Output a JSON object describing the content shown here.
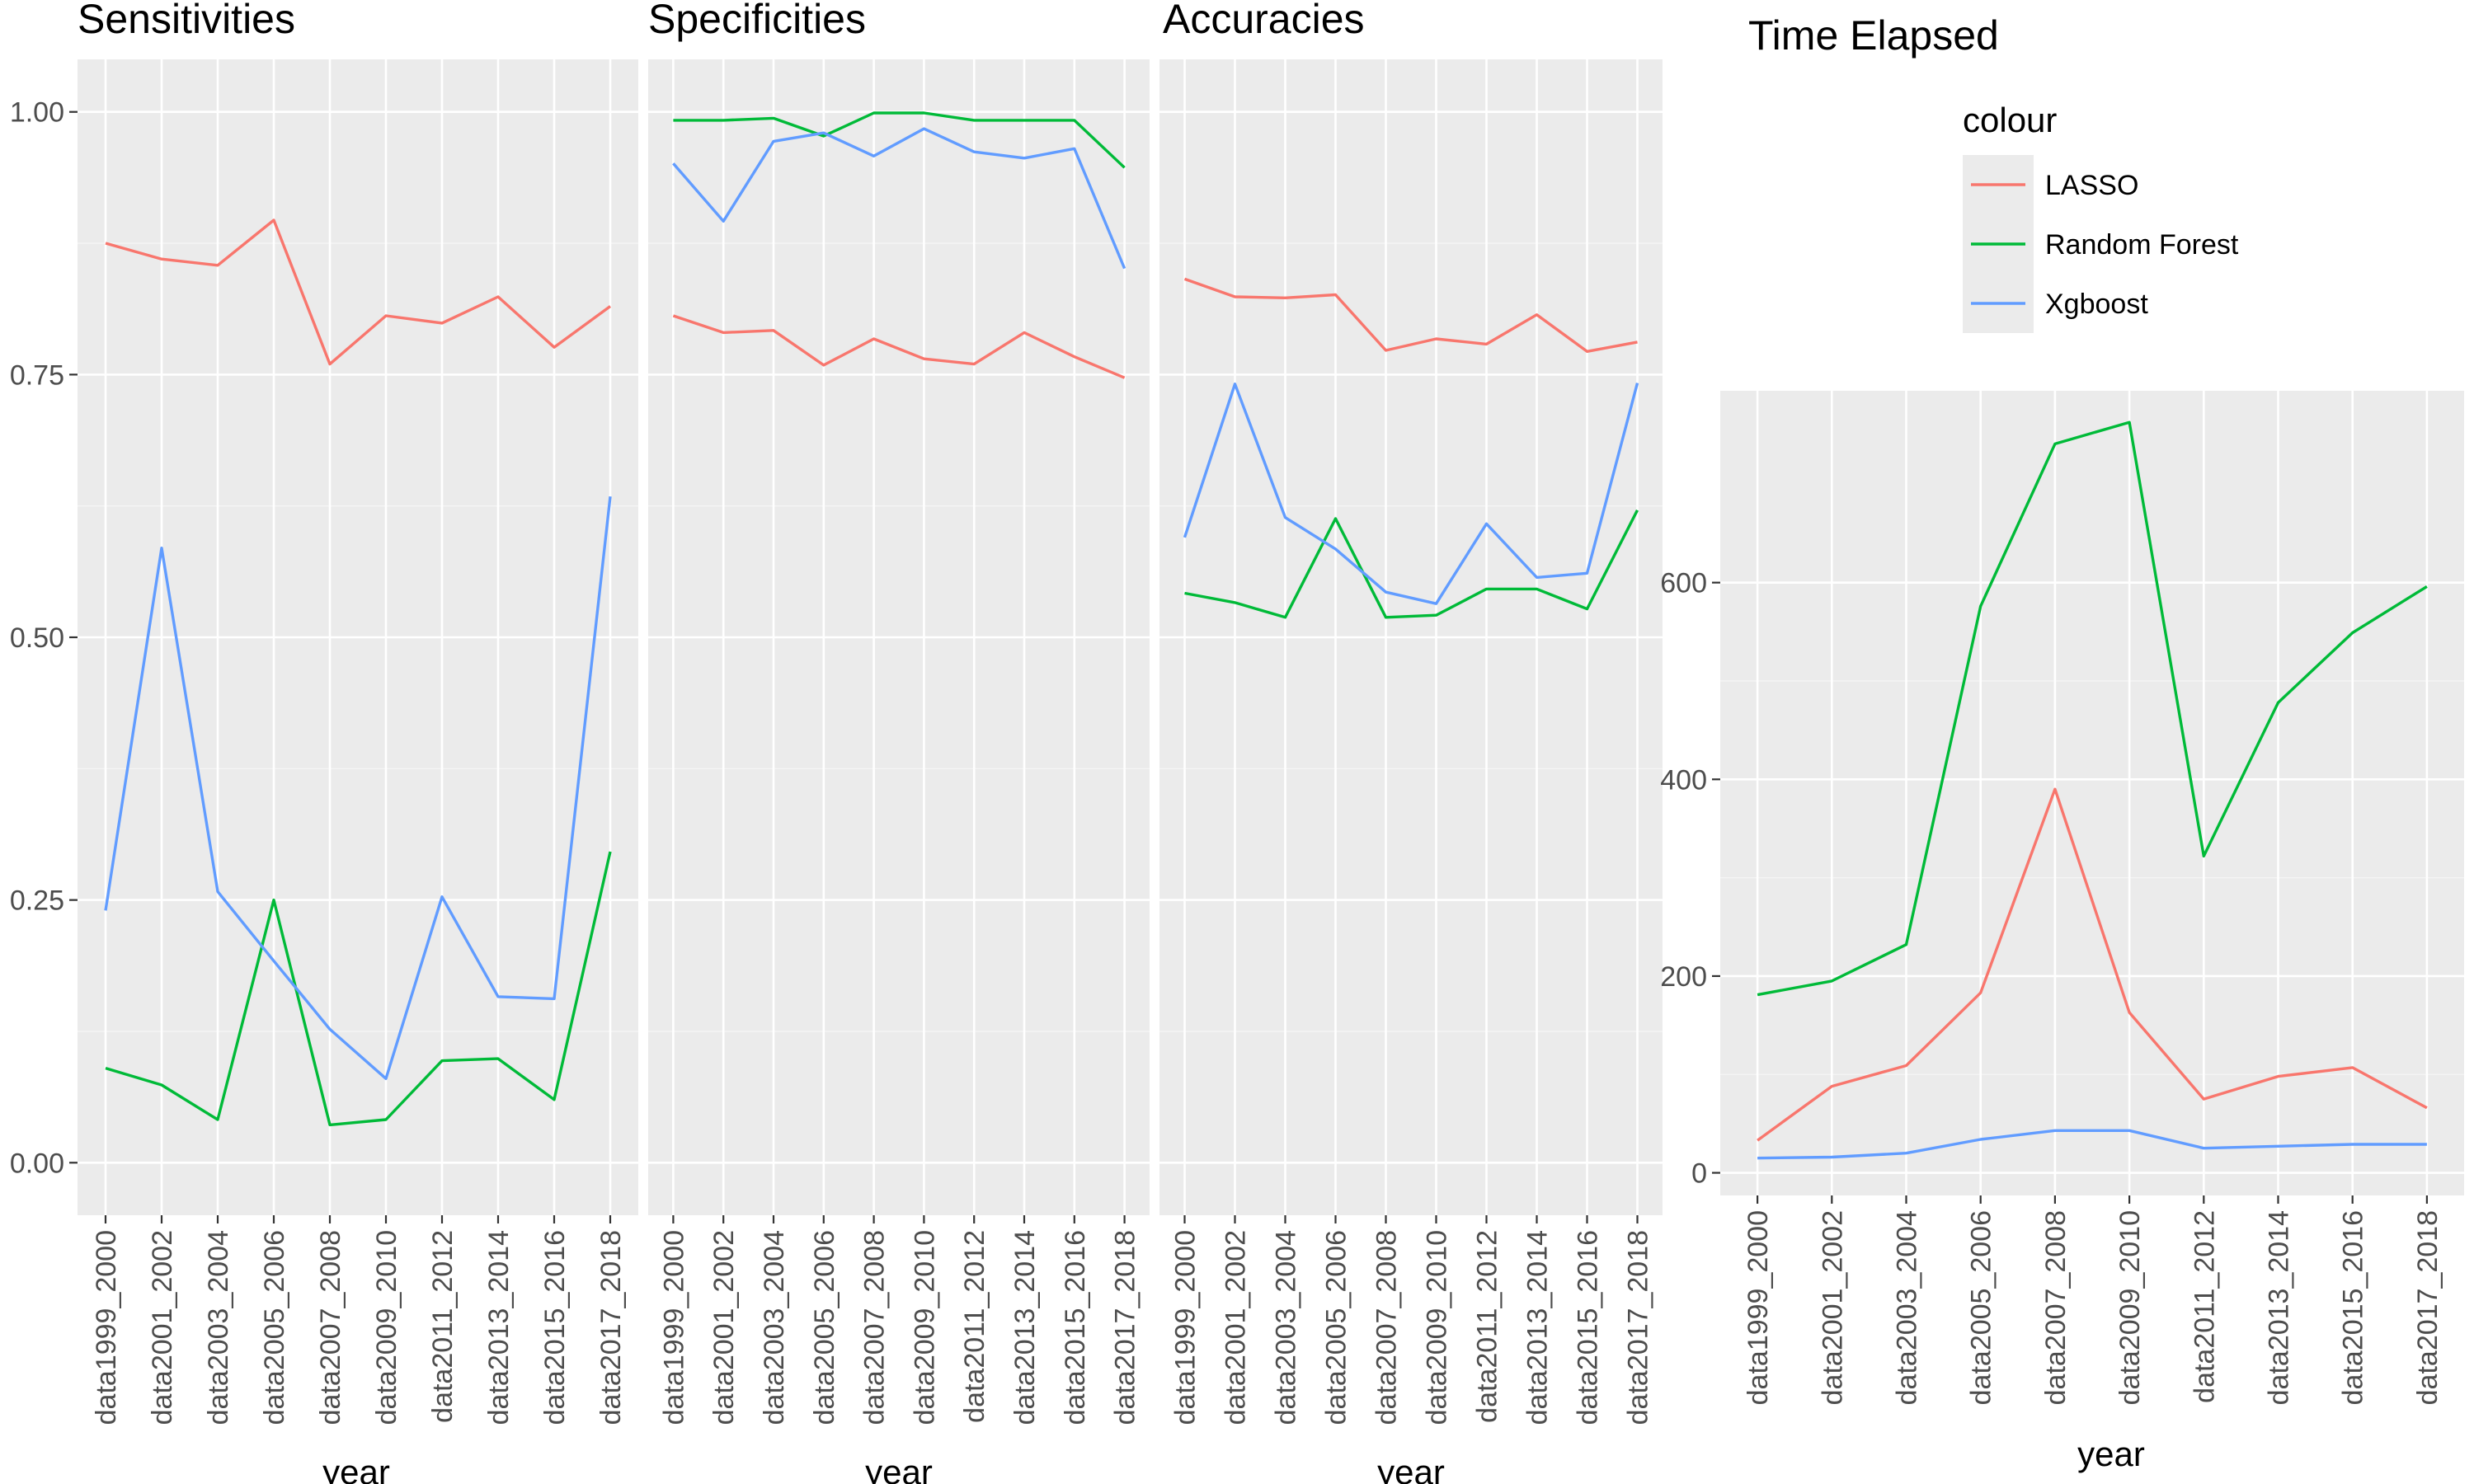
{
  "chart_data": [
    {
      "type": "line",
      "title": "Sensitivities",
      "xlabel": "year",
      "ylabel": "",
      "categories": [
        "data1999_2000",
        "data2001_2002",
        "data2003_2004",
        "data2005_2006",
        "data2007_2008",
        "data2009_2010",
        "data2011_2012",
        "data2013_2014",
        "data2015_2016",
        "data2017_2018"
      ],
      "ylim": [
        -0.05,
        1.05
      ],
      "yticks": [
        0.0,
        0.25,
        0.5,
        0.75,
        1.0
      ],
      "ytick_labels": [
        "0.00",
        "0.25",
        "0.50",
        "0.75",
        "1.00"
      ],
      "grid": true,
      "series": [
        {
          "name": "LASSO",
          "values": [
            0.875,
            0.86,
            0.854,
            0.897,
            0.76,
            0.806,
            0.799,
            0.824,
            0.776,
            0.815
          ]
        },
        {
          "name": "Random Forest",
          "values": [
            0.09,
            0.074,
            0.041,
            0.25,
            0.036,
            0.041,
            0.097,
            0.099,
            0.06,
            0.296
          ]
        },
        {
          "name": "Xgboost",
          "values": [
            0.24,
            0.585,
            0.258,
            0.192,
            0.127,
            0.08,
            0.253,
            0.158,
            0.156,
            0.634
          ]
        }
      ]
    },
    {
      "type": "line",
      "title": "Specificities",
      "xlabel": "year",
      "ylabel": "",
      "categories": [
        "data1999_2000",
        "data2001_2002",
        "data2003_2004",
        "data2005_2006",
        "data2007_2008",
        "data2009_2010",
        "data2011_2012",
        "data2013_2014",
        "data2015_2016",
        "data2017_2018"
      ],
      "ylim": [
        -0.05,
        1.05
      ],
      "grid": true,
      "series": [
        {
          "name": "LASSO",
          "values": [
            0.806,
            0.79,
            0.792,
            0.759,
            0.784,
            0.765,
            0.76,
            0.79,
            0.767,
            0.747
          ]
        },
        {
          "name": "Random Forest",
          "values": [
            0.992,
            0.992,
            0.994,
            0.977,
            0.999,
            0.999,
            0.992,
            0.992,
            0.992,
            0.947
          ]
        },
        {
          "name": "Xgboost",
          "values": [
            0.951,
            0.896,
            0.972,
            0.98,
            0.958,
            0.984,
            0.962,
            0.956,
            0.965,
            0.851
          ]
        }
      ]
    },
    {
      "type": "line",
      "title": "Accuracies",
      "xlabel": "year",
      "ylabel": "",
      "categories": [
        "data1999_2000",
        "data2001_2002",
        "data2003_2004",
        "data2005_2006",
        "data2007_2008",
        "data2009_2010",
        "data2011_2012",
        "data2013_2014",
        "data2015_2016",
        "data2017_2018"
      ],
      "ylim": [
        -0.05,
        1.05
      ],
      "grid": true,
      "series": [
        {
          "name": "LASSO",
          "values": [
            0.841,
            0.824,
            0.823,
            0.826,
            0.773,
            0.784,
            0.779,
            0.807,
            0.772,
            0.781
          ]
        },
        {
          "name": "Random Forest",
          "values": [
            0.542,
            0.533,
            0.519,
            0.613,
            0.519,
            0.521,
            0.546,
            0.546,
            0.527,
            0.621
          ]
        },
        {
          "name": "Xgboost",
          "values": [
            0.595,
            0.741,
            0.614,
            0.584,
            0.543,
            0.532,
            0.608,
            0.557,
            0.561,
            0.742
          ]
        }
      ]
    },
    {
      "type": "line",
      "title": "Time Elapsed",
      "xlabel": "year",
      "ylabel": "",
      "categories": [
        "data1999_2000",
        "data2001_2002",
        "data2003_2004",
        "data2005_2006",
        "data2007_2008",
        "data2009_2010",
        "data2011_2012",
        "data2013_2014",
        "data2015_2016",
        "data2017_2018"
      ],
      "ylim": [
        -23,
        795
      ],
      "yticks": [
        0,
        200,
        400,
        600
      ],
      "ytick_labels": [
        "0",
        "200",
        "400",
        "600"
      ],
      "grid": true,
      "series": [
        {
          "name": "LASSO",
          "values": [
            33,
            88,
            109,
            183,
            390,
            163,
            75,
            98,
            107,
            66
          ]
        },
        {
          "name": "Random Forest",
          "values": [
            181,
            195,
            232,
            576,
            741,
            763,
            322,
            478,
            549,
            596
          ]
        },
        {
          "name": "Xgboost",
          "values": [
            15,
            16,
            20,
            34,
            43,
            43,
            25,
            27,
            29,
            29
          ]
        }
      ]
    }
  ],
  "legend": {
    "title": "colour",
    "placement": "top-right",
    "items": [
      {
        "label": "LASSO",
        "color": "#F8766D"
      },
      {
        "label": "Random Forest",
        "color": "#00BA38"
      },
      {
        "label": "Xgboost",
        "color": "#619CFF"
      }
    ]
  }
}
